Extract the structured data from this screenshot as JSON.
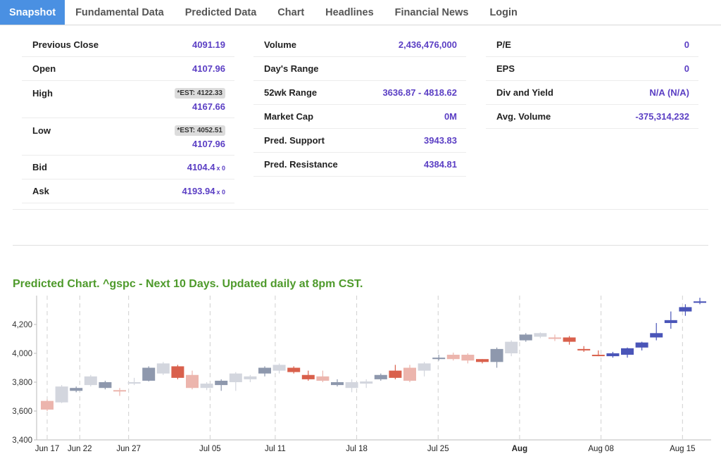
{
  "tabs": [
    {
      "label": "Snapshot",
      "active": true
    },
    {
      "label": "Fundamental Data"
    },
    {
      "label": "Predicted Data"
    },
    {
      "label": "Chart"
    },
    {
      "label": "Headlines"
    },
    {
      "label": "Financial News"
    },
    {
      "label": "Login"
    }
  ],
  "snapshot": {
    "col1": {
      "previous_close": {
        "label": "Previous Close",
        "value": "4091.19"
      },
      "open": {
        "label": "Open",
        "value": "4107.96"
      },
      "high": {
        "label": "High",
        "est": "*EST: 4122.33",
        "value": "4167.66"
      },
      "low": {
        "label": "Low",
        "est": "*EST: 4052.51",
        "value": "4107.96"
      },
      "bid": {
        "label": "Bid",
        "value": "4104.4",
        "size": "x 0"
      },
      "ask": {
        "label": "Ask",
        "value": "4193.94",
        "size": "x 0"
      }
    },
    "col2": {
      "volume": {
        "label": "Volume",
        "value": "2,436,476,000"
      },
      "days_range": {
        "label": "Day's Range",
        "value": ""
      },
      "range_52wk": {
        "label": "52wk Range",
        "value": "3636.87 - 4818.62"
      },
      "market_cap": {
        "label": "Market Cap",
        "value": "0M"
      },
      "pred_support": {
        "label": "Pred. Support",
        "value": "3943.83"
      },
      "pred_resistance": {
        "label": "Pred. Resistance",
        "value": "4384.81"
      }
    },
    "col3": {
      "pe": {
        "label": "P/E",
        "value": "0"
      },
      "eps": {
        "label": "EPS",
        "value": "0"
      },
      "div_yield": {
        "label": "Div and Yield",
        "value": "N/A (N/A)"
      },
      "avg_volume": {
        "label": "Avg. Volume",
        "value": "-375,314,232"
      }
    }
  },
  "chart_title": "Predicted Chart. ^gspc - Next 10 Days. Updated daily at 8pm CST.",
  "colors": {
    "tab_active": "#4a90e2",
    "value_purple": "#5b3fc4",
    "title_green": "#4e9a2b",
    "hist_up": "#8e98ad",
    "hist_up_light": "#d3d6de",
    "hist_down": "#d9604c",
    "hist_down_light": "#ecb5ad",
    "pred_up": "#4a55b8",
    "pred_down": "#d9604c"
  },
  "chart_data": {
    "type": "candlestick",
    "ylim": [
      3400,
      4400
    ],
    "y_ticks": [
      "3,400",
      "3,600",
      "3,800",
      "4,000",
      "4,200"
    ],
    "x_ticks": [
      {
        "label": "Jun 17",
        "index": 0,
        "bold": false
      },
      {
        "label": "Jun 22",
        "index": 2,
        "bold": false
      },
      {
        "label": "Jun 27",
        "index": 5,
        "bold": false
      },
      {
        "label": "Jul 05",
        "index": 10,
        "bold": false
      },
      {
        "label": "Jul 11",
        "index": 14,
        "bold": false
      },
      {
        "label": "Jul 18",
        "index": 19,
        "bold": false
      },
      {
        "label": "Jul 25",
        "index": 24,
        "bold": false
      },
      {
        "label": "Aug",
        "index": 29,
        "bold": true
      },
      {
        "label": "Aug 08",
        "index": 34,
        "bold": false
      },
      {
        "label": "Aug 15",
        "index": 39,
        "bold": false
      }
    ],
    "candles": [
      {
        "o": 3610,
        "h": 3680,
        "l": 3600,
        "c": 3670,
        "s": "dl"
      },
      {
        "o": 3660,
        "h": 3780,
        "l": 3655,
        "c": 3770,
        "s": "ul"
      },
      {
        "o": 3740,
        "h": 3770,
        "l": 3730,
        "c": 3760,
        "s": "u"
      },
      {
        "o": 3780,
        "h": 3850,
        "l": 3770,
        "c": 3840,
        "s": "ul"
      },
      {
        "o": 3760,
        "h": 3810,
        "l": 3750,
        "c": 3800,
        "s": "u"
      },
      {
        "o": 3745,
        "h": 3760,
        "l": 3705,
        "c": 3740,
        "s": "dl"
      },
      {
        "o": 3800,
        "h": 3830,
        "l": 3780,
        "c": 3790,
        "s": "ul"
      },
      {
        "o": 3810,
        "h": 3910,
        "l": 3805,
        "c": 3900,
        "s": "u"
      },
      {
        "o": 3860,
        "h": 3940,
        "l": 3850,
        "c": 3930,
        "s": "ul"
      },
      {
        "o": 3910,
        "h": 3920,
        "l": 3820,
        "c": 3830,
        "s": "d"
      },
      {
        "o": 3850,
        "h": 3880,
        "l": 3750,
        "c": 3760,
        "s": "dl"
      },
      {
        "o": 3760,
        "h": 3800,
        "l": 3745,
        "c": 3790,
        "s": "ul"
      },
      {
        "o": 3780,
        "h": 3820,
        "l": 3740,
        "c": 3810,
        "s": "u"
      },
      {
        "o": 3800,
        "h": 3870,
        "l": 3740,
        "c": 3860,
        "s": "ul"
      },
      {
        "o": 3820,
        "h": 3850,
        "l": 3800,
        "c": 3840,
        "s": "ul"
      },
      {
        "o": 3860,
        "h": 3910,
        "l": 3840,
        "c": 3900,
        "s": "u"
      },
      {
        "o": 3880,
        "h": 3930,
        "l": 3860,
        "c": 3920,
        "s": "ul"
      },
      {
        "o": 3900,
        "h": 3910,
        "l": 3860,
        "c": 3870,
        "s": "d"
      },
      {
        "o": 3850,
        "h": 3880,
        "l": 3810,
        "c": 3820,
        "s": "d"
      },
      {
        "o": 3840,
        "h": 3880,
        "l": 3800,
        "c": 3810,
        "s": "dl"
      },
      {
        "o": 3780,
        "h": 3820,
        "l": 3770,
        "c": 3800,
        "s": "u"
      },
      {
        "o": 3760,
        "h": 3820,
        "l": 3730,
        "c": 3800,
        "s": "ul"
      },
      {
        "o": 3790,
        "h": 3820,
        "l": 3760,
        "c": 3805,
        "s": "ul"
      },
      {
        "o": 3820,
        "h": 3860,
        "l": 3810,
        "c": 3850,
        "s": "u"
      },
      {
        "o": 3880,
        "h": 3920,
        "l": 3820,
        "c": 3830,
        "s": "d"
      },
      {
        "o": 3900,
        "h": 3920,
        "l": 3800,
        "c": 3810,
        "s": "dl"
      },
      {
        "o": 3880,
        "h": 3940,
        "l": 3840,
        "c": 3930,
        "s": "ul"
      },
      {
        "o": 3960,
        "h": 3990,
        "l": 3950,
        "c": 3970,
        "s": "u"
      },
      {
        "o": 3990,
        "h": 4005,
        "l": 3950,
        "c": 3960,
        "s": "dl"
      },
      {
        "o": 3990,
        "h": 4000,
        "l": 3930,
        "c": 3950,
        "s": "dl"
      },
      {
        "o": 3960,
        "h": 3960,
        "l": 3930,
        "c": 3940,
        "s": "d"
      },
      {
        "o": 3940,
        "h": 4040,
        "l": 3900,
        "c": 4030,
        "s": "u"
      },
      {
        "o": 4000,
        "h": 4090,
        "l": 3980,
        "c": 4080,
        "s": "ul"
      },
      {
        "o": 4090,
        "h": 4140,
        "l": 4080,
        "c": 4130,
        "s": "u"
      },
      {
        "o": 4115,
        "h": 4145,
        "l": 4105,
        "c": 4140,
        "s": "ul"
      },
      {
        "o": 4110,
        "h": 4130,
        "l": 4085,
        "c": 4100,
        "s": "dl"
      },
      {
        "o": 4080,
        "h": 4120,
        "l": 4060,
        "c": 4110,
        "s": "d"
      },
      {
        "o": 4030,
        "h": 4050,
        "l": 4010,
        "c": 4020,
        "s": "pd"
      },
      {
        "o": 3990,
        "h": 4020,
        "l": 3980,
        "c": 3985,
        "s": "pd"
      },
      {
        "o": 3980,
        "h": 4010,
        "l": 3970,
        "c": 4000,
        "s": "pu"
      },
      {
        "o": 3990,
        "h": 4040,
        "l": 3970,
        "c": 4035,
        "s": "pu"
      },
      {
        "o": 4040,
        "h": 4080,
        "l": 4020,
        "c": 4075,
        "s": "pu"
      },
      {
        "o": 4110,
        "h": 4210,
        "l": 4090,
        "c": 4140,
        "s": "pu"
      },
      {
        "o": 4210,
        "h": 4290,
        "l": 4170,
        "c": 4230,
        "s": "pu"
      },
      {
        "o": 4290,
        "h": 4340,
        "l": 4260,
        "c": 4320,
        "s": "pu"
      },
      {
        "o": 4350,
        "h": 4385,
        "l": 4340,
        "c": 4360,
        "s": "pu"
      }
    ]
  }
}
